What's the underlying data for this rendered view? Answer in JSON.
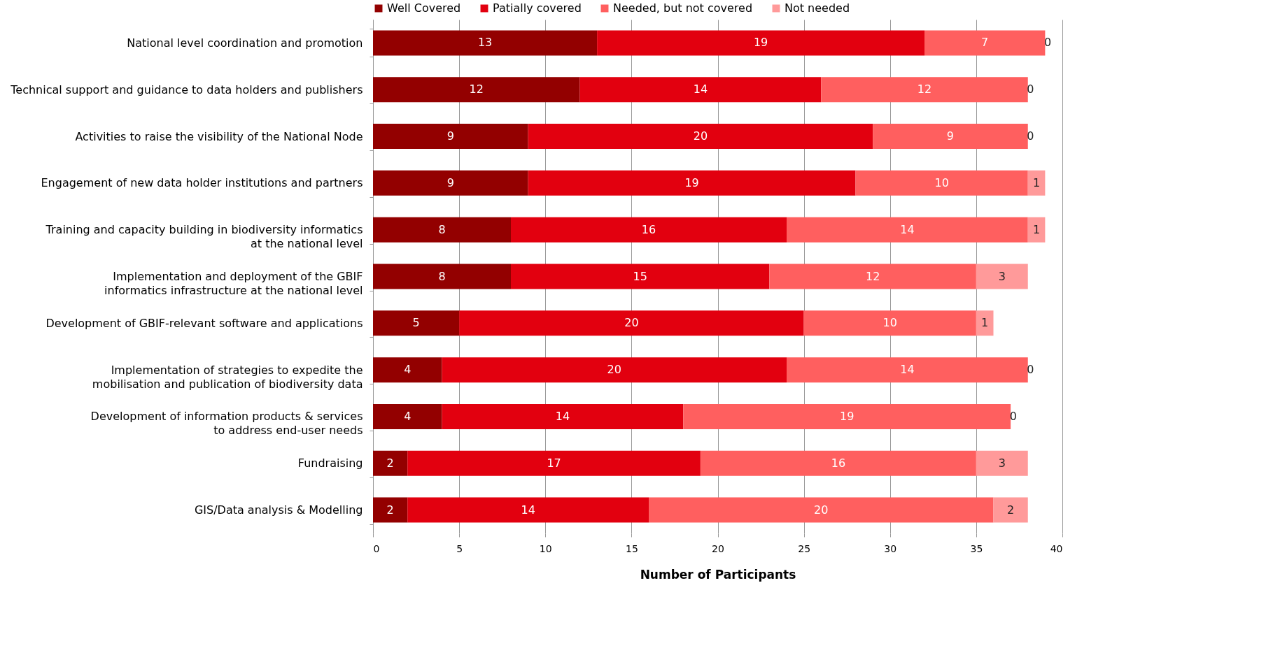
{
  "chart_data": {
    "type": "bar",
    "orientation": "horizontal",
    "stacked": true,
    "xlabel": "Number of Participants",
    "categories": [
      "National level coordination  and promotion",
      "Technical support and guidance to data holders and publishers",
      "Activities  to raise the visibility of the National Node",
      "Engagement of new data holder institutions  and partners",
      "Training and capacity building in biodiversity informatics\nat the national  level",
      "Implementation  and deployment of the GBIF\ninformatics infrastructure  at the national level",
      "Development of GBIF-relevant software and applications",
      "Implementation  of strategies to expedite the\nmobilisation and publication of biodiversity data",
      "Development of information products & services\nto address end-user needs",
      "Fundraising",
      "GIS/Data analysis & Modelling"
    ],
    "series": [
      {
        "name": "Well Covered",
        "color": "#930000",
        "values": [
          13,
          12,
          9,
          9,
          8,
          8,
          5,
          4,
          4,
          2,
          2
        ]
      },
      {
        "name": "Patially covered",
        "color": "#e2000f",
        "values": [
          19,
          14,
          20,
          19,
          16,
          15,
          20,
          20,
          14,
          17,
          14
        ]
      },
      {
        "name": "Needed, but not covered",
        "color": "#ff5f5f",
        "values": [
          7,
          12,
          9,
          10,
          14,
          12,
          10,
          14,
          19,
          16,
          20
        ]
      },
      {
        "name": "Not needed",
        "color": "#ff9a9a",
        "values": [
          0,
          0,
          0,
          1,
          1,
          3,
          1,
          0,
          0,
          3,
          2
        ]
      }
    ],
    "xlim": [
      0,
      40
    ],
    "xticks": [
      0,
      5,
      10,
      15,
      20,
      25,
      30,
      35,
      40
    ],
    "grid": "x",
    "legend": "top",
    "data_labels": true
  }
}
